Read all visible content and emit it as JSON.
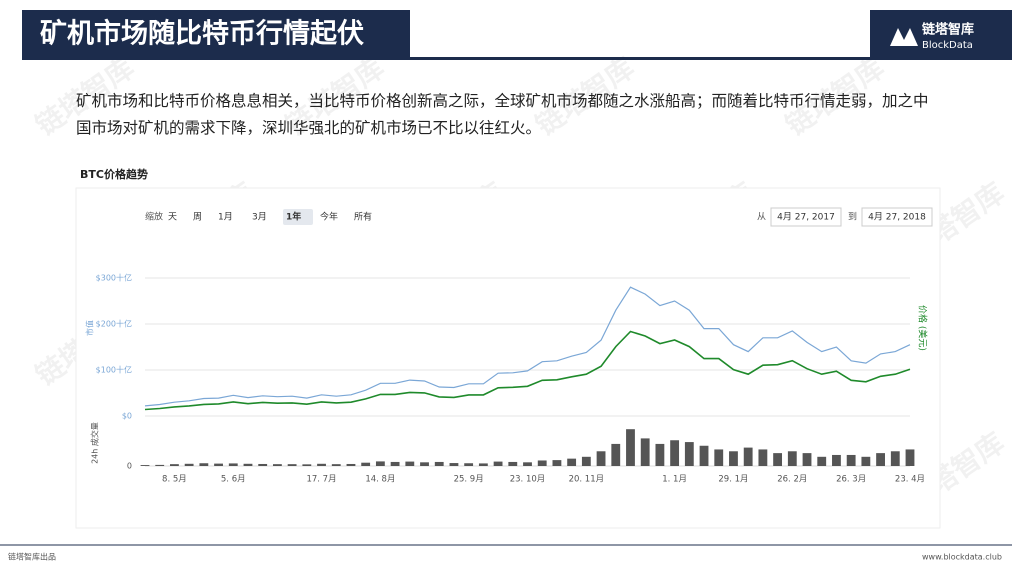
{
  "header": {
    "title": "矿机市场随比特币行情起伏",
    "logo_cn": "链塔智库",
    "logo_en": "BlockData"
  },
  "paragraph": "矿机市场和比特币价格息息相关，当比特币价格创新高之际，全球矿机市场都随之水涨船高；而随着比特币行情走弱，加之中国市场对矿机的需求下降，深圳华强北的矿机市场已不比以往红火。",
  "watermark": "链塔智库",
  "controls": {
    "zoom_label": "缩放",
    "buttons": [
      "天",
      "周",
      "1月",
      "3月",
      "1年",
      "今年",
      "所有"
    ],
    "from_label": "从",
    "from": "4月 27, 2017",
    "to_label": "到",
    "to": "4月 27, 2018"
  },
  "footer": {
    "left": "链塔智库出品",
    "right": "www.blockdata.club"
  },
  "chart_data": {
    "type": "line",
    "title": "BTC价格趋势",
    "categories": [
      null,
      null,
      "8. 5月",
      null,
      null,
      null,
      "5. 6月",
      null,
      null,
      null,
      null,
      null,
      "17. 7月",
      null,
      null,
      null,
      "14. 8月",
      null,
      null,
      null,
      null,
      null,
      "25. 9月",
      null,
      null,
      null,
      "23. 10月",
      null,
      null,
      null,
      "20. 11月",
      null,
      null,
      null,
      null,
      null,
      "1. 1月",
      null,
      null,
      null,
      "29. 1月",
      null,
      null,
      null,
      "26. 2月",
      null,
      null,
      null,
      "26. 3月",
      null,
      null,
      null,
      "23. 4月"
    ],
    "ylabel": "市值",
    "y2label": "价格 (美元)",
    "ylim": [
      0,
      350
    ],
    "yticks": [
      {
        "value": 0,
        "label": "$0"
      },
      {
        "value": 100,
        "label": "$100十亿"
      },
      {
        "value": 200,
        "label": "$200十亿"
      },
      {
        "value": 300,
        "label": "$300十亿"
      }
    ],
    "y2lim": [
      0,
      32000
    ],
    "series": [
      {
        "name": "市值",
        "color": "#7ba7d6",
        "values": [
          22,
          25,
          30,
          33,
          38,
          39,
          45,
          40,
          44,
          42,
          43,
          39,
          46,
          43,
          46,
          56,
          71,
          71,
          78,
          76,
          63,
          62,
          70,
          70,
          93,
          94,
          98,
          118,
          120,
          130,
          138,
          165,
          230,
          280,
          265,
          240,
          250,
          230,
          190,
          190,
          155,
          140,
          170,
          170,
          185,
          160,
          140,
          150,
          120,
          115,
          135,
          140,
          155
        ]
      },
      {
        "name": "价格 (美元)",
        "color": "#1f8a2b",
        "axis": "y2",
        "values": [
          1300,
          1500,
          1800,
          2000,
          2300,
          2400,
          2800,
          2450,
          2700,
          2550,
          2600,
          2350,
          2800,
          2600,
          2750,
          3400,
          4300,
          4300,
          4700,
          4600,
          3800,
          3700,
          4200,
          4200,
          5600,
          5700,
          5900,
          7100,
          7200,
          7800,
          8300,
          9900,
          13800,
          16800,
          15900,
          14400,
          15100,
          13800,
          11400,
          11400,
          9200,
          8300,
          10100,
          10200,
          11000,
          9400,
          8300,
          8900,
          7100,
          6800,
          7900,
          8300,
          9300
        ]
      }
    ],
    "volume": {
      "name": "24h 成交量",
      "color": "#555555",
      "ylim": [
        0,
        25
      ],
      "yticks": [
        0
      ],
      "values": [
        0.5,
        0.6,
        1,
        1.2,
        1.5,
        1.3,
        1.4,
        1.2,
        1.1,
        1,
        1,
        0.9,
        1.2,
        1,
        1.1,
        1.8,
        2.5,
        2.2,
        2.4,
        2,
        2.2,
        1.6,
        1.5,
        1.4,
        2.4,
        2.2,
        2,
        3,
        3.2,
        4,
        5,
        8,
        12,
        20,
        15,
        12,
        14,
        13,
        11,
        9,
        8,
        10,
        9,
        7,
        8,
        7,
        5,
        6,
        6,
        5,
        7,
        8,
        9
      ]
    }
  }
}
